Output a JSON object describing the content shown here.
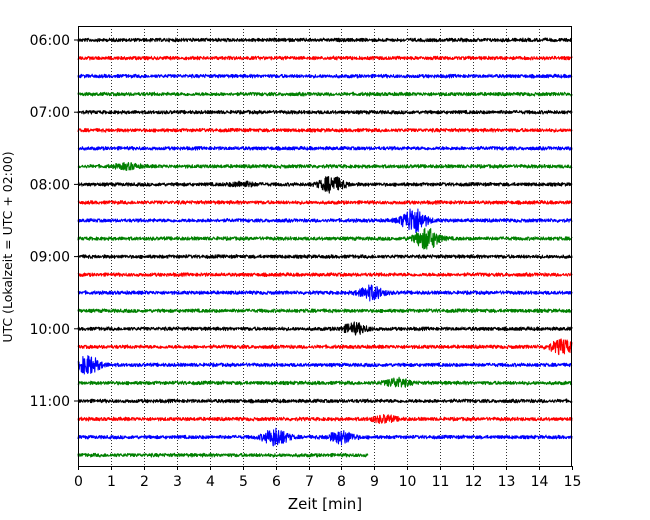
{
  "chart_data": {
    "type": "line",
    "title": "",
    "xlabel": "Zeit  [min]",
    "ylabel": "UTC (Lokalzeit = UTC + 02:00)",
    "xlim": [
      0,
      15
    ],
    "x_ticks": [
      "0",
      "1",
      "2",
      "3",
      "4",
      "5",
      "6",
      "7",
      "8",
      "9",
      "10",
      "11",
      "12",
      "13",
      "14",
      "15"
    ],
    "y_ticks": [
      "06:00",
      "07:00",
      "08:00",
      "09:00",
      "10:00",
      "11:00"
    ],
    "grid": "vertical dotted lines at each minute",
    "row_interval_minutes": 15,
    "colors_cycle": [
      "#000000",
      "#ff0000",
      "#0000ff",
      "#008000"
    ],
    "series": [
      {
        "start": "06:00",
        "color": "#000000",
        "end_min": 15,
        "events": []
      },
      {
        "start": "06:15",
        "color": "#ff0000",
        "end_min": 15,
        "events": []
      },
      {
        "start": "06:30",
        "color": "#0000ff",
        "end_min": 15,
        "events": []
      },
      {
        "start": "06:45",
        "color": "#008000",
        "end_min": 15,
        "events": []
      },
      {
        "start": "07:00",
        "color": "#000000",
        "end_min": 15,
        "events": []
      },
      {
        "start": "07:15",
        "color": "#ff0000",
        "end_min": 15,
        "events": []
      },
      {
        "start": "07:30",
        "color": "#0000ff",
        "end_min": 15,
        "events": []
      },
      {
        "start": "07:45",
        "color": "#008000",
        "end_min": 15,
        "events": [
          {
            "t": 1.5,
            "amp": 0.3
          }
        ]
      },
      {
        "start": "08:00",
        "color": "#000000",
        "end_min": 15,
        "events": [
          {
            "t": 5.0,
            "amp": 0.25
          },
          {
            "t": 7.7,
            "amp": 0.9
          }
        ]
      },
      {
        "start": "08:15",
        "color": "#ff0000",
        "end_min": 15,
        "events": []
      },
      {
        "start": "08:30",
        "color": "#0000ff",
        "end_min": 15,
        "events": [
          {
            "t": 10.2,
            "amp": 1.5
          }
        ]
      },
      {
        "start": "08:45",
        "color": "#008000",
        "end_min": 15,
        "events": [
          {
            "t": 10.6,
            "amp": 1.2
          }
        ]
      },
      {
        "start": "09:00",
        "color": "#000000",
        "end_min": 15,
        "events": []
      },
      {
        "start": "09:15",
        "color": "#ff0000",
        "end_min": 15,
        "events": []
      },
      {
        "start": "09:30",
        "color": "#0000ff",
        "end_min": 15,
        "events": [
          {
            "t": 8.9,
            "amp": 0.8
          }
        ]
      },
      {
        "start": "09:45",
        "color": "#008000",
        "end_min": 15,
        "events": []
      },
      {
        "start": "10:00",
        "color": "#000000",
        "end_min": 15,
        "events": [
          {
            "t": 8.4,
            "amp": 0.6
          }
        ]
      },
      {
        "start": "10:15",
        "color": "#ff0000",
        "end_min": 15,
        "events": [
          {
            "t": 14.7,
            "amp": 0.8
          }
        ]
      },
      {
        "start": "10:30",
        "color": "#0000ff",
        "end_min": 15,
        "events": [
          {
            "t": 0.3,
            "amp": 1.0
          }
        ]
      },
      {
        "start": "10:45",
        "color": "#008000",
        "end_min": 15,
        "events": [
          {
            "t": 9.7,
            "amp": 0.5
          }
        ]
      },
      {
        "start": "11:00",
        "color": "#000000",
        "end_min": 15,
        "events": []
      },
      {
        "start": "11:15",
        "color": "#ff0000",
        "end_min": 15,
        "events": [
          {
            "t": 9.3,
            "amp": 0.4
          }
        ]
      },
      {
        "start": "11:30",
        "color": "#0000ff",
        "end_min": 15,
        "events": [
          {
            "t": 6.0,
            "amp": 1.0
          },
          {
            "t": 8.0,
            "amp": 0.7
          }
        ]
      },
      {
        "start": "11:45",
        "color": "#008000",
        "end_min": 8.8,
        "events": []
      }
    ]
  }
}
